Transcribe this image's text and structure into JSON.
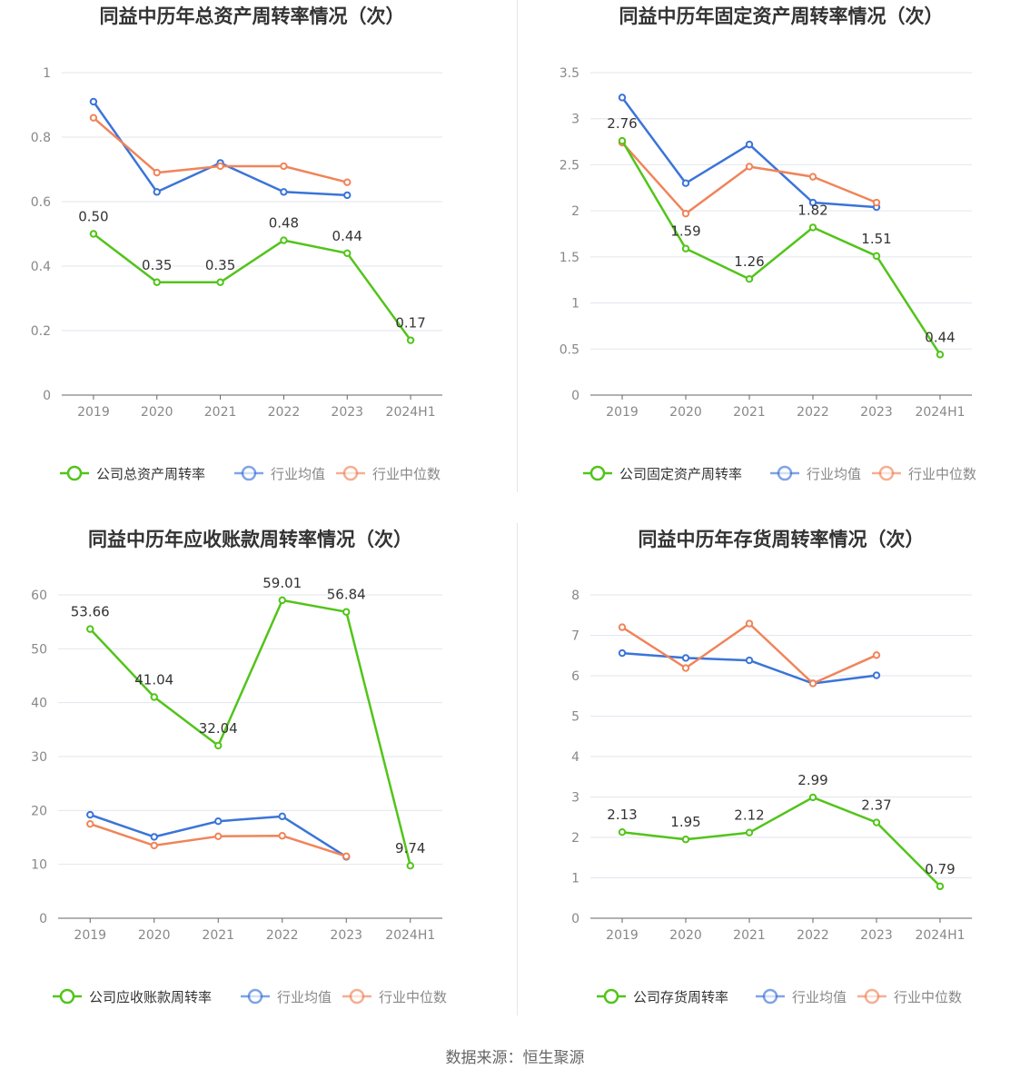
{
  "source": "数据来源：恒生聚源",
  "colors": {
    "company": "#52c41a",
    "avg": "#3b74d9",
    "median": "#f0845a"
  },
  "chart_data": [
    {
      "type": "line",
      "title": "同益中历年总资产周转率情况（次）",
      "categories": [
        "2019",
        "2020",
        "2021",
        "2022",
        "2023",
        "2024H1"
      ],
      "yticks": [
        "0",
        "0.2",
        "0.4",
        "0.6",
        "0.8",
        "1"
      ],
      "ylim": [
        0,
        1
      ],
      "series": [
        {
          "name": "公司总资产周转率",
          "key": "company",
          "values": [
            0.5,
            0.35,
            0.35,
            0.48,
            0.44,
            0.17
          ],
          "labels": [
            "0.50",
            "0.35",
            "0.35",
            "0.48",
            "0.44",
            "0.17"
          ]
        },
        {
          "name": "行业均值",
          "key": "avg",
          "values": [
            0.91,
            0.63,
            0.72,
            0.63,
            0.62,
            null
          ]
        },
        {
          "name": "行业中位数",
          "key": "median",
          "values": [
            0.86,
            0.69,
            0.71,
            0.71,
            0.66,
            null
          ]
        }
      ]
    },
    {
      "type": "line",
      "title": "同益中历年固定资产周转率情况（次）",
      "categories": [
        "2019",
        "2020",
        "2021",
        "2022",
        "2023",
        "2024H1"
      ],
      "yticks": [
        "0",
        "0.5",
        "1",
        "1.5",
        "2",
        "2.5",
        "3",
        "3.5"
      ],
      "ylim": [
        0,
        3.5
      ],
      "series": [
        {
          "name": "公司固定资产周转率",
          "key": "company",
          "values": [
            2.76,
            1.59,
            1.26,
            1.82,
            1.51,
            0.44
          ],
          "labels": [
            "2.76",
            "1.59",
            "1.26",
            "1.82",
            "1.51",
            "0.44"
          ]
        },
        {
          "name": "行业均值",
          "key": "avg",
          "values": [
            3.23,
            2.3,
            2.72,
            2.09,
            2.04,
            null
          ]
        },
        {
          "name": "行业中位数",
          "key": "median",
          "values": [
            2.74,
            1.97,
            2.48,
            2.37,
            2.09,
            null
          ]
        }
      ]
    },
    {
      "type": "line",
      "title": "同益中历年应收账款周转率情况（次）",
      "categories": [
        "2019",
        "2020",
        "2021",
        "2022",
        "2023",
        "2024H1"
      ],
      "yticks": [
        "0",
        "10",
        "20",
        "30",
        "40",
        "50",
        "60"
      ],
      "ylim": [
        0,
        60
      ],
      "series": [
        {
          "name": "公司应收账款周转率",
          "key": "company",
          "values": [
            53.66,
            41.04,
            32.04,
            59.01,
            56.84,
            9.74
          ],
          "labels": [
            "53.66",
            "41.04",
            "32.04",
            "59.01",
            "56.84",
            "9.74"
          ]
        },
        {
          "name": "行业均值",
          "key": "avg",
          "values": [
            19.2,
            15.1,
            18.0,
            18.9,
            11.4,
            null
          ]
        },
        {
          "name": "行业中位数",
          "key": "median",
          "values": [
            17.5,
            13.5,
            15.2,
            15.3,
            11.5,
            null
          ]
        }
      ]
    },
    {
      "type": "line",
      "title": "同益中历年存货周转率情况（次）",
      "categories": [
        "2019",
        "2020",
        "2021",
        "2022",
        "2023",
        "2024H1"
      ],
      "yticks": [
        "0",
        "1",
        "2",
        "3",
        "4",
        "5",
        "6",
        "7",
        "8"
      ],
      "ylim": [
        0,
        8
      ],
      "series": [
        {
          "name": "公司存货周转率",
          "key": "company",
          "values": [
            2.13,
            1.95,
            2.12,
            2.99,
            2.37,
            0.79
          ],
          "labels": [
            "2.13",
            "1.95",
            "2.12",
            "2.99",
            "2.37",
            "0.79"
          ]
        },
        {
          "name": "行业均值",
          "key": "avg",
          "values": [
            6.56,
            6.44,
            6.38,
            5.81,
            6.01,
            null
          ]
        },
        {
          "name": "行业中位数",
          "key": "median",
          "values": [
            7.2,
            6.19,
            7.29,
            5.81,
            6.51,
            null
          ]
        }
      ]
    }
  ]
}
